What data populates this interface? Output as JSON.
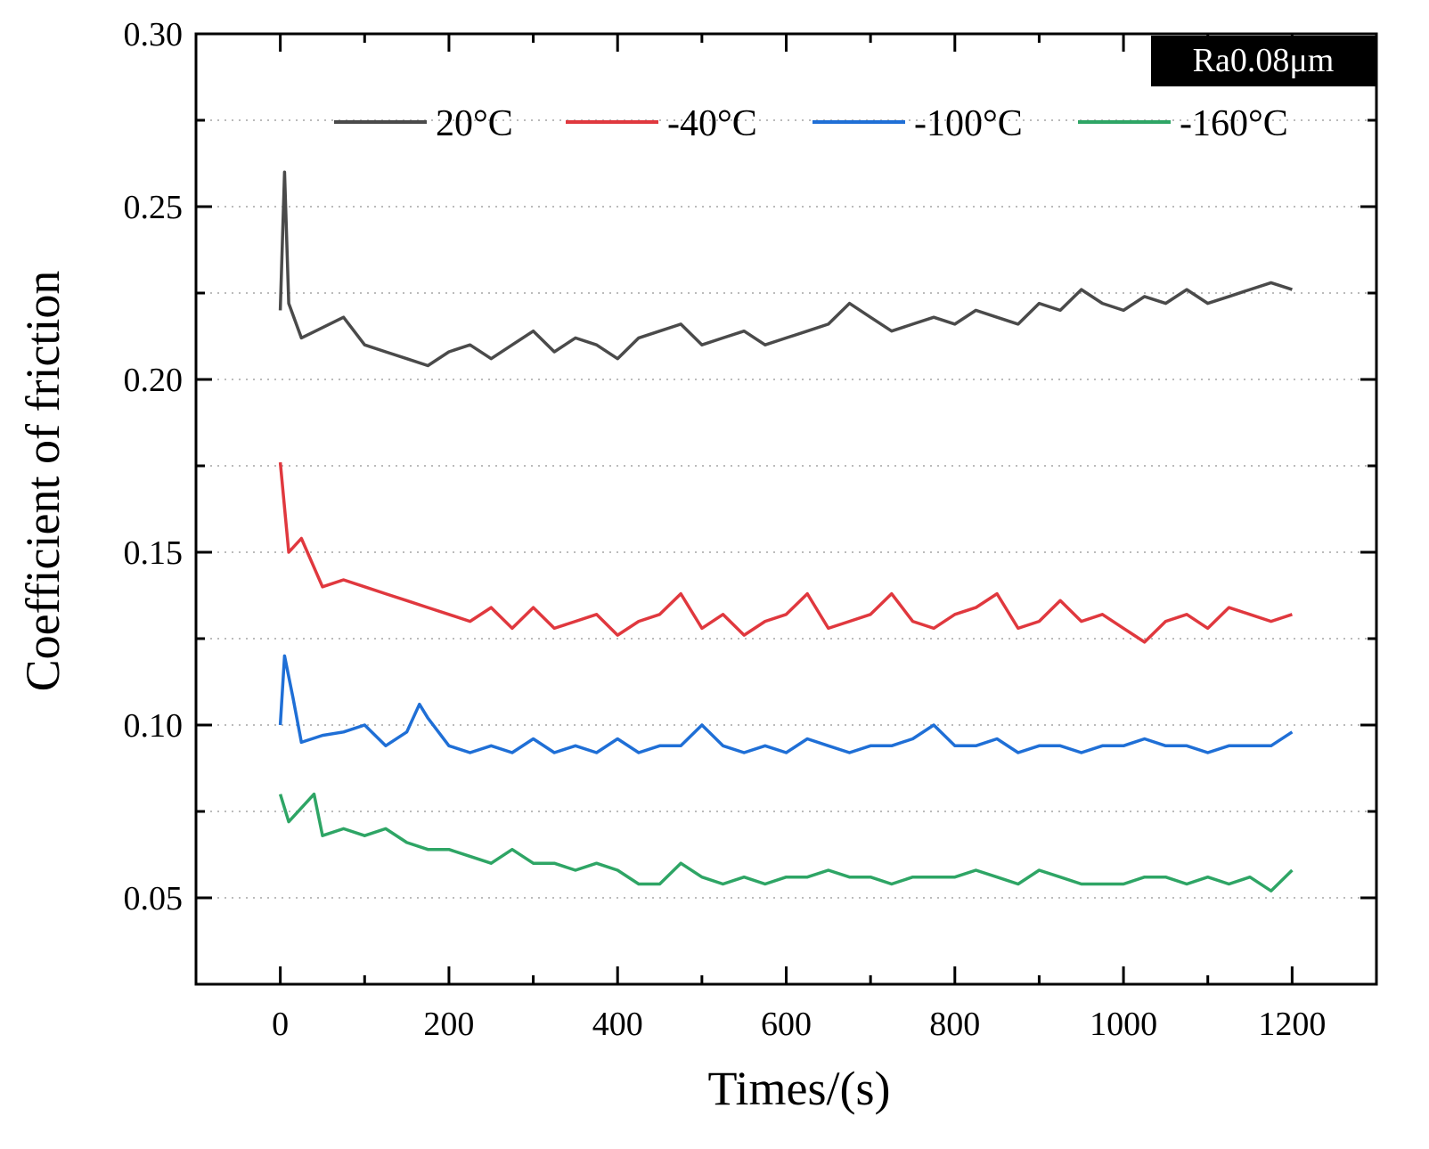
{
  "chart_data": {
    "type": "line",
    "title": "",
    "xlabel": "Times/(s)",
    "ylabel": "Coefficient of friction",
    "xlim": [
      -100,
      1300
    ],
    "ylim": [
      0.025,
      0.3
    ],
    "xticks": [
      0,
      200,
      400,
      600,
      800,
      1000,
      1200
    ],
    "xtick_labels": [
      "0",
      "200",
      "400",
      "600",
      "800",
      "1000",
      "1200"
    ],
    "yticks": [
      0.05,
      0.1,
      0.15,
      0.2,
      0.25,
      0.3
    ],
    "ytick_labels": [
      "0.05",
      "0.10",
      "0.15",
      "0.20",
      "0.25",
      "0.30"
    ],
    "grid": "horizontal dotted",
    "legend_position": "top",
    "annotation": "Ra0.08μm",
    "series": [
      {
        "name": "20°C",
        "color": "#4a4a4a",
        "x": [
          0,
          5,
          10,
          25,
          50,
          75,
          100,
          125,
          150,
          175,
          200,
          225,
          250,
          275,
          300,
          325,
          350,
          375,
          400,
          425,
          450,
          475,
          500,
          525,
          550,
          575,
          600,
          625,
          650,
          675,
          700,
          725,
          750,
          775,
          800,
          825,
          850,
          875,
          900,
          925,
          950,
          975,
          1000,
          1025,
          1050,
          1075,
          1100,
          1125,
          1150,
          1175,
          1200
        ],
        "y": [
          0.22,
          0.26,
          0.222,
          0.212,
          0.215,
          0.218,
          0.21,
          0.208,
          0.206,
          0.204,
          0.208,
          0.21,
          0.206,
          0.21,
          0.214,
          0.208,
          0.212,
          0.21,
          0.206,
          0.212,
          0.214,
          0.216,
          0.21,
          0.212,
          0.214,
          0.21,
          0.212,
          0.214,
          0.216,
          0.222,
          0.218,
          0.214,
          0.216,
          0.218,
          0.216,
          0.22,
          0.218,
          0.216,
          0.222,
          0.22,
          0.226,
          0.222,
          0.22,
          0.224,
          0.222,
          0.226,
          0.222,
          0.224,
          0.226,
          0.228,
          0.226
        ]
      },
      {
        "name": "-40°C",
        "color": "#e0383e",
        "x": [
          0,
          10,
          25,
          50,
          75,
          100,
          125,
          150,
          175,
          200,
          225,
          250,
          275,
          300,
          325,
          350,
          375,
          400,
          425,
          450,
          475,
          500,
          525,
          550,
          575,
          600,
          625,
          650,
          675,
          700,
          725,
          750,
          775,
          800,
          825,
          850,
          875,
          900,
          925,
          950,
          975,
          1000,
          1025,
          1050,
          1075,
          1100,
          1125,
          1150,
          1175,
          1200
        ],
        "y": [
          0.176,
          0.15,
          0.154,
          0.14,
          0.142,
          0.14,
          0.138,
          0.136,
          0.134,
          0.132,
          0.13,
          0.134,
          0.128,
          0.134,
          0.128,
          0.13,
          0.132,
          0.126,
          0.13,
          0.132,
          0.138,
          0.128,
          0.132,
          0.126,
          0.13,
          0.132,
          0.138,
          0.128,
          0.13,
          0.132,
          0.138,
          0.13,
          0.128,
          0.132,
          0.134,
          0.138,
          0.128,
          0.13,
          0.136,
          0.13,
          0.132,
          0.128,
          0.124,
          0.13,
          0.132,
          0.128,
          0.134,
          0.132,
          0.13,
          0.132
        ]
      },
      {
        "name": "-100°C",
        "color": "#1f6fd6",
        "x": [
          0,
          5,
          15,
          25,
          50,
          75,
          100,
          125,
          150,
          165,
          175,
          200,
          225,
          250,
          275,
          300,
          325,
          350,
          375,
          400,
          425,
          450,
          475,
          500,
          525,
          550,
          575,
          600,
          625,
          650,
          675,
          700,
          725,
          750,
          775,
          800,
          825,
          850,
          875,
          900,
          925,
          950,
          975,
          1000,
          1025,
          1050,
          1075,
          1100,
          1125,
          1150,
          1175,
          1200
        ],
        "y": [
          0.1,
          0.12,
          0.108,
          0.095,
          0.097,
          0.098,
          0.1,
          0.094,
          0.098,
          0.106,
          0.102,
          0.094,
          0.092,
          0.094,
          0.092,
          0.096,
          0.092,
          0.094,
          0.092,
          0.096,
          0.092,
          0.094,
          0.094,
          0.1,
          0.094,
          0.092,
          0.094,
          0.092,
          0.096,
          0.094,
          0.092,
          0.094,
          0.094,
          0.096,
          0.1,
          0.094,
          0.094,
          0.096,
          0.092,
          0.094,
          0.094,
          0.092,
          0.094,
          0.094,
          0.096,
          0.094,
          0.094,
          0.092,
          0.094,
          0.094,
          0.094,
          0.098
        ]
      },
      {
        "name": "-160°C",
        "color": "#2ea565",
        "x": [
          0,
          10,
          25,
          40,
          50,
          75,
          100,
          125,
          150,
          175,
          200,
          225,
          250,
          275,
          300,
          325,
          350,
          375,
          400,
          425,
          450,
          475,
          500,
          525,
          550,
          575,
          600,
          625,
          650,
          675,
          700,
          725,
          750,
          775,
          800,
          825,
          850,
          875,
          900,
          925,
          950,
          975,
          1000,
          1025,
          1050,
          1075,
          1100,
          1125,
          1150,
          1175,
          1200
        ],
        "y": [
          0.08,
          0.072,
          0.076,
          0.08,
          0.068,
          0.07,
          0.068,
          0.07,
          0.066,
          0.064,
          0.064,
          0.062,
          0.06,
          0.064,
          0.06,
          0.06,
          0.058,
          0.06,
          0.058,
          0.054,
          0.054,
          0.06,
          0.056,
          0.054,
          0.056,
          0.054,
          0.056,
          0.056,
          0.058,
          0.056,
          0.056,
          0.054,
          0.056,
          0.056,
          0.056,
          0.058,
          0.056,
          0.054,
          0.058,
          0.056,
          0.054,
          0.054,
          0.054,
          0.056,
          0.056,
          0.054,
          0.056,
          0.054,
          0.056,
          0.052,
          0.058
        ]
      }
    ]
  }
}
